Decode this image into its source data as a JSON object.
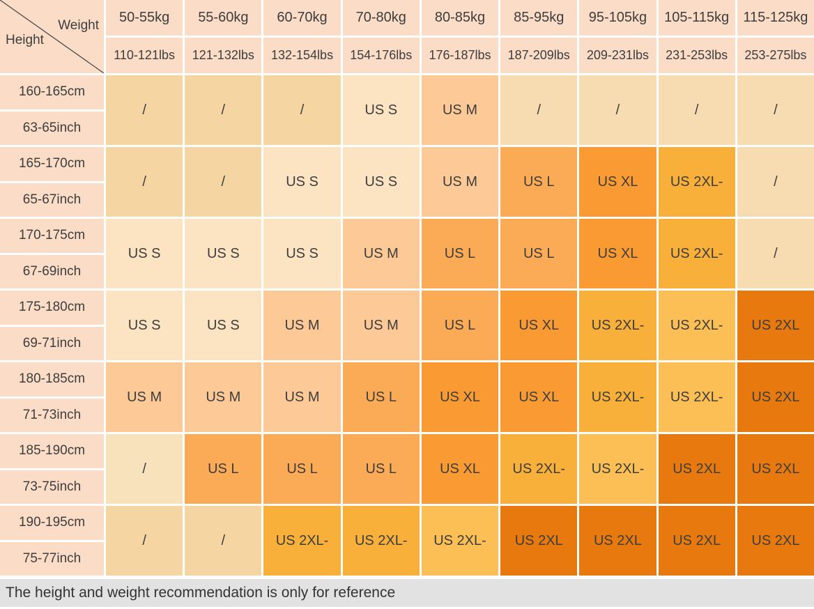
{
  "palette": {
    "header_bg": "#fbdcc6",
    "grid_line": "#ffffff",
    "text": "#3d3d3d",
    "footer_bg": "#e2e2e2",
    "diagonal_line": "#4a4a4a",
    "slash_dark": "#f5d6a2",
    "slash_light": "#f7dcb1",
    "slash_cream": "#f8e2bb",
    "size_s": "#fce3c1",
    "size_m": "#fcc997",
    "size_l": "#fbaa55",
    "size_xl": "#f99a33",
    "size_2xl_minus": "#f8b03a",
    "size_2xl_minus_light": "#fbbf55",
    "size_2xl": "#e8790e"
  },
  "chart_data": {
    "type": "table",
    "corner": {
      "col_axis": "Weight",
      "row_axis": "Height"
    },
    "columns": [
      {
        "kg": "50-55kg",
        "lbs": "110-121lbs"
      },
      {
        "kg": "55-60kg",
        "lbs": "121-132lbs"
      },
      {
        "kg": "60-70kg",
        "lbs": "132-154lbs"
      },
      {
        "kg": "70-80kg",
        "lbs": "154-176lbs"
      },
      {
        "kg": "80-85kg",
        "lbs": "176-187lbs"
      },
      {
        "kg": "85-95kg",
        "lbs": "187-209lbs"
      },
      {
        "kg": "95-105kg",
        "lbs": "209-231lbs"
      },
      {
        "kg": "105-115kg",
        "lbs": "231-253lbs"
      },
      {
        "kg": "115-125kg",
        "lbs": "253-275lbs"
      }
    ],
    "rows": [
      {
        "cm": "160-165cm",
        "inch": "63-65inch",
        "cells": [
          {
            "label": "/",
            "color": "slash_dark"
          },
          {
            "label": "/",
            "color": "slash_dark"
          },
          {
            "label": "/",
            "color": "slash_dark"
          },
          {
            "label": "US S",
            "color": "size_s"
          },
          {
            "label": "US M",
            "color": "size_m"
          },
          {
            "label": "/",
            "color": "slash_light"
          },
          {
            "label": "/",
            "color": "slash_light"
          },
          {
            "label": "/",
            "color": "slash_light"
          },
          {
            "label": "/",
            "color": "slash_light"
          }
        ]
      },
      {
        "cm": "165-170cm",
        "inch": "65-67inch",
        "cells": [
          {
            "label": "/",
            "color": "slash_dark"
          },
          {
            "label": "/",
            "color": "slash_dark"
          },
          {
            "label": "US S",
            "color": "size_s"
          },
          {
            "label": "US S",
            "color": "size_s"
          },
          {
            "label": "US M",
            "color": "size_m"
          },
          {
            "label": "US L",
            "color": "size_l"
          },
          {
            "label": "US XL",
            "color": "size_xl"
          },
          {
            "label": "US 2XL-",
            "color": "size_2xl_minus"
          },
          {
            "label": "/",
            "color": "slash_light"
          }
        ]
      },
      {
        "cm": "170-175cm",
        "inch": "67-69inch",
        "cells": [
          {
            "label": "US S",
            "color": "size_s"
          },
          {
            "label": "US S",
            "color": "size_s"
          },
          {
            "label": "US S",
            "color": "size_s"
          },
          {
            "label": "US M",
            "color": "size_m"
          },
          {
            "label": "US L",
            "color": "size_l"
          },
          {
            "label": "US L",
            "color": "size_l"
          },
          {
            "label": "US XL",
            "color": "size_xl"
          },
          {
            "label": "US 2XL-",
            "color": "size_2xl_minus"
          },
          {
            "label": "/",
            "color": "slash_light"
          }
        ]
      },
      {
        "cm": "175-180cm",
        "inch": "69-71inch",
        "cells": [
          {
            "label": "US S",
            "color": "size_s"
          },
          {
            "label": "US S",
            "color": "size_s"
          },
          {
            "label": "US M",
            "color": "size_m"
          },
          {
            "label": "US M",
            "color": "size_m"
          },
          {
            "label": "US L",
            "color": "size_l"
          },
          {
            "label": "US XL",
            "color": "size_xl"
          },
          {
            "label": "US 2XL-",
            "color": "size_2xl_minus"
          },
          {
            "label": "US 2XL-",
            "color": "size_2xl_minus_light"
          },
          {
            "label": "US 2XL",
            "color": "size_2xl"
          }
        ]
      },
      {
        "cm": "180-185cm",
        "inch": "71-73inch",
        "cells": [
          {
            "label": "US M",
            "color": "size_m"
          },
          {
            "label": "US M",
            "color": "size_m"
          },
          {
            "label": "US M",
            "color": "size_m"
          },
          {
            "label": "US L",
            "color": "size_l"
          },
          {
            "label": "US XL",
            "color": "size_xl"
          },
          {
            "label": "US XL",
            "color": "size_xl"
          },
          {
            "label": "US 2XL-",
            "color": "size_2xl_minus"
          },
          {
            "label": "US 2XL-",
            "color": "size_2xl_minus_light"
          },
          {
            "label": "US 2XL",
            "color": "size_2xl"
          }
        ]
      },
      {
        "cm": "185-190cm",
        "inch": "73-75inch",
        "cells": [
          {
            "label": "/",
            "color": "slash_cream"
          },
          {
            "label": "US L",
            "color": "size_l"
          },
          {
            "label": "US L",
            "color": "size_l"
          },
          {
            "label": "US L",
            "color": "size_l"
          },
          {
            "label": "US XL",
            "color": "size_xl"
          },
          {
            "label": "US 2XL-",
            "color": "size_2xl_minus"
          },
          {
            "label": "US 2XL-",
            "color": "size_2xl_minus_light"
          },
          {
            "label": "US 2XL",
            "color": "size_2xl"
          },
          {
            "label": "US 2XL",
            "color": "size_2xl"
          }
        ]
      },
      {
        "cm": "190-195cm",
        "inch": "75-77inch",
        "cells": [
          {
            "label": "/",
            "color": "slash_dark"
          },
          {
            "label": "/",
            "color": "slash_dark"
          },
          {
            "label": "US 2XL-",
            "color": "size_2xl_minus"
          },
          {
            "label": "US 2XL-",
            "color": "size_2xl_minus"
          },
          {
            "label": "US 2XL-",
            "color": "size_2xl_minus_light"
          },
          {
            "label": "US 2XL",
            "color": "size_2xl"
          },
          {
            "label": "US 2XL",
            "color": "size_2xl"
          },
          {
            "label": "US 2XL",
            "color": "size_2xl"
          },
          {
            "label": "US 2XL",
            "color": "size_2xl"
          }
        ]
      }
    ],
    "footer_note": "The height and weight recommendation is only for reference"
  }
}
